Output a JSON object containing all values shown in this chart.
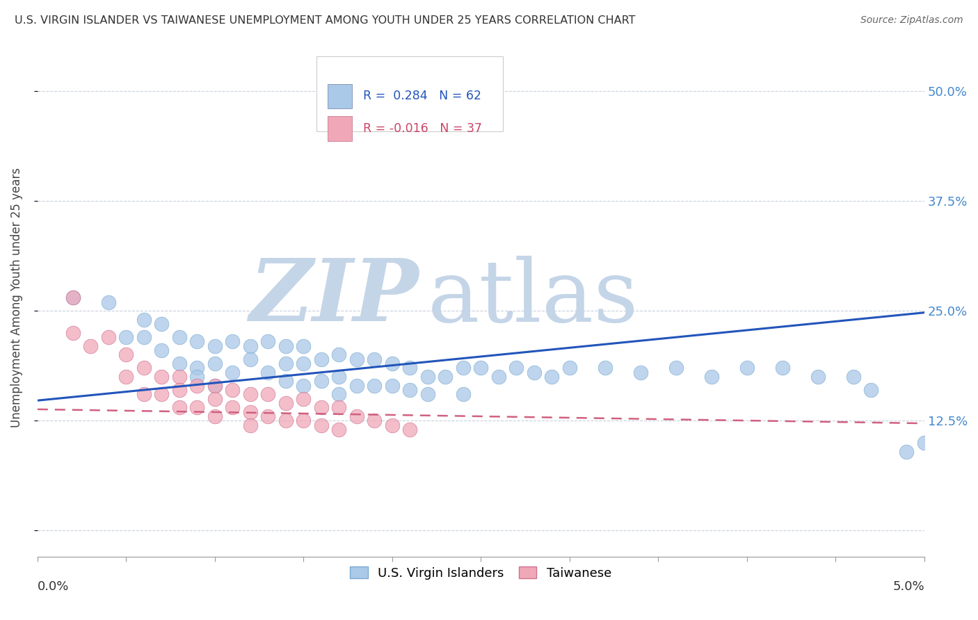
{
  "title": "U.S. VIRGIN ISLANDER VS TAIWANESE UNEMPLOYMENT AMONG YOUTH UNDER 25 YEARS CORRELATION CHART",
  "source": "Source: ZipAtlas.com",
  "ylabel": "Unemployment Among Youth under 25 years",
  "yticks": [
    0.0,
    0.125,
    0.25,
    0.375,
    0.5
  ],
  "ytick_labels": [
    "",
    "12.5%",
    "25.0%",
    "37.5%",
    "50.0%"
  ],
  "xlim": [
    0.0,
    0.05
  ],
  "ylim": [
    -0.03,
    0.56
  ],
  "watermark_zip": "ZIP",
  "watermark_atlas": "atlas",
  "watermark_color_zip": "#c5d5e8",
  "watermark_color_atlas": "#c5d5e8",
  "series": [
    {
      "name": "U.S. Virgin Islanders",
      "color": "#aac8e8",
      "edge_color": "#7aaad0",
      "line_color": "#2255bb",
      "line_style": "solid",
      "R": 0.284,
      "N": 62,
      "x": [
        0.002,
        0.004,
        0.005,
        0.006,
        0.006,
        0.007,
        0.007,
        0.008,
        0.008,
        0.009,
        0.009,
        0.009,
        0.01,
        0.01,
        0.01,
        0.011,
        0.011,
        0.012,
        0.012,
        0.013,
        0.013,
        0.014,
        0.014,
        0.014,
        0.015,
        0.015,
        0.015,
        0.016,
        0.016,
        0.017,
        0.017,
        0.017,
        0.018,
        0.018,
        0.019,
        0.019,
        0.02,
        0.02,
        0.021,
        0.021,
        0.022,
        0.022,
        0.023,
        0.024,
        0.024,
        0.025,
        0.026,
        0.027,
        0.028,
        0.029,
        0.03,
        0.032,
        0.034,
        0.036,
        0.038,
        0.04,
        0.042,
        0.044,
        0.046,
        0.047,
        0.049,
        0.05
      ],
      "y": [
        0.265,
        0.26,
        0.22,
        0.24,
        0.22,
        0.235,
        0.205,
        0.22,
        0.19,
        0.215,
        0.185,
        0.175,
        0.21,
        0.19,
        0.165,
        0.215,
        0.18,
        0.21,
        0.195,
        0.215,
        0.18,
        0.21,
        0.19,
        0.17,
        0.21,
        0.19,
        0.165,
        0.195,
        0.17,
        0.2,
        0.175,
        0.155,
        0.195,
        0.165,
        0.195,
        0.165,
        0.19,
        0.165,
        0.185,
        0.16,
        0.175,
        0.155,
        0.175,
        0.185,
        0.155,
        0.185,
        0.175,
        0.185,
        0.18,
        0.175,
        0.185,
        0.185,
        0.18,
        0.185,
        0.175,
        0.185,
        0.185,
        0.175,
        0.175,
        0.16,
        0.09,
        0.1
      ]
    },
    {
      "name": "Taiwanese",
      "color": "#f0a8b8",
      "edge_color": "#d07090",
      "line_color": "#d06080",
      "line_style": "dashed",
      "R": -0.016,
      "N": 37,
      "x": [
        0.002,
        0.002,
        0.003,
        0.004,
        0.005,
        0.005,
        0.006,
        0.006,
        0.007,
        0.007,
        0.008,
        0.008,
        0.008,
        0.009,
        0.009,
        0.01,
        0.01,
        0.01,
        0.011,
        0.011,
        0.012,
        0.012,
        0.012,
        0.013,
        0.013,
        0.014,
        0.014,
        0.015,
        0.015,
        0.016,
        0.016,
        0.017,
        0.017,
        0.018,
        0.019,
        0.02,
        0.021
      ],
      "y": [
        0.265,
        0.225,
        0.21,
        0.22,
        0.2,
        0.175,
        0.185,
        0.155,
        0.175,
        0.155,
        0.175,
        0.16,
        0.14,
        0.165,
        0.14,
        0.165,
        0.15,
        0.13,
        0.16,
        0.14,
        0.155,
        0.135,
        0.12,
        0.155,
        0.13,
        0.145,
        0.125,
        0.15,
        0.125,
        0.14,
        0.12,
        0.14,
        0.115,
        0.13,
        0.125,
        0.12,
        0.115
      ]
    }
  ],
  "blue_line": {
    "x0": 0.0,
    "y0": 0.148,
    "x1": 0.05,
    "y1": 0.248
  },
  "pink_line": {
    "x0": 0.0,
    "y0": 0.138,
    "x1": 0.05,
    "y1": 0.122
  },
  "legend_R1": "R =  0.284",
  "legend_N1": "N = 62",
  "legend_R2": "R = -0.016",
  "legend_N2": "N = 37",
  "legend_color1": "#2255bb",
  "legend_color2": "#cc4466",
  "legend_box1": "#aac8e8",
  "legend_box2": "#f0a8b8",
  "bottom_label1": "U.S. Virgin Islanders",
  "bottom_label2": "Taiwanese"
}
